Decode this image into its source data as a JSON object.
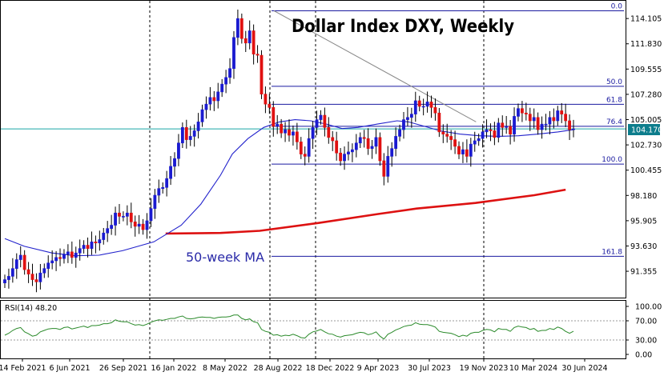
{
  "chart_data": {
    "type": "candlestick",
    "title": "Dollar Index DXY, Weekly",
    "instrument": "DXY",
    "timeframe": "Weekly",
    "current_price": "104.170",
    "price_axis": {
      "ticks": [
        "114.105",
        "111.830",
        "109.555",
        "107.280",
        "105.005",
        "102.730",
        "100.455",
        "98.180",
        "95.905",
        "93.630",
        "91.355"
      ],
      "range": [
        90.4,
        115.0
      ]
    },
    "x_axis_labels": [
      "14 Feb 2021",
      "6 Jun 2021",
      "26 Sep 2021",
      "16 Jan 2022",
      "8 May 2022",
      "28 Aug 2022",
      "18 Dec 2022",
      "9 Apr 2023",
      "30 Jul 2023",
      "19 Nov 2023",
      "10 Mar 2024",
      "30 Jun 2024"
    ],
    "vertical_separators": [
      "16 Jan 2022",
      "28 Aug 2022",
      "18 Dec 2022",
      "19 Nov 2023"
    ],
    "fibonacci_levels": [
      {
        "label": "0.0",
        "price": 114.8
      },
      {
        "label": "50.0",
        "price": 108.0
      },
      {
        "label": "61.8",
        "price": 106.38
      },
      {
        "label": "76.4",
        "price": 104.4
      },
      {
        "label": "100.0",
        "price": 101.0
      },
      {
        "label": "161.8",
        "price": 92.7
      }
    ],
    "annotations": [
      "50-week MA"
    ],
    "series": [
      {
        "kind": "ohlc",
        "color_up": "#1a1ad0",
        "color_down": "#e01010",
        "closes": [
          90.6,
          90.9,
          91.6,
          92.4,
          92.8,
          91.5,
          91.1,
          90.6,
          90.4,
          91.2,
          91.6,
          92.1,
          92.3,
          92.6,
          92.5,
          92.9,
          93.1,
          92.6,
          93.0,
          93.4,
          93.7,
          93.4,
          94.0,
          93.9,
          94.2,
          94.8,
          95.2,
          95.5,
          96.6,
          96.3,
          96.3,
          96.6,
          95.8,
          95.4,
          95.6,
          95.1,
          95.9,
          97.0,
          98.2,
          98.8,
          98.9,
          99.7,
          100.8,
          101.5,
          102.9,
          104.3,
          103.2,
          103.5,
          104.0,
          104.8,
          105.9,
          106.4,
          107.0,
          106.7,
          107.5,
          108.2,
          108.8,
          109.6,
          112.4,
          114.1,
          112.3,
          111.9,
          113.0,
          110.9,
          110.8,
          107.3,
          106.4,
          106.1,
          104.4,
          104.6,
          103.8,
          104.1,
          103.6,
          103.9,
          103.0,
          101.9,
          101.7,
          103.3,
          104.3,
          105.0,
          105.4,
          104.3,
          103.4,
          103.1,
          102.0,
          101.3,
          101.9,
          102.1,
          102.3,
          102.9,
          103.4,
          103.3,
          102.4,
          102.6,
          103.4,
          101.3,
          99.9,
          101.7,
          102.4,
          103.5,
          104.1,
          105.0,
          105.2,
          105.5,
          106.7,
          106.2,
          106.2,
          106.6,
          106.1,
          105.6,
          103.9,
          103.7,
          103.5,
          103.2,
          102.6,
          101.9,
          102.3,
          101.7,
          102.8,
          103.1,
          103.3,
          103.9,
          104.1,
          104.0,
          103.4,
          104.7,
          104.3,
          104.4,
          103.7,
          105.3,
          106.0,
          105.6,
          105.5,
          104.9,
          105.2,
          104.1,
          104.6,
          104.6,
          105.2,
          104.9,
          105.8,
          105.5,
          104.9,
          104.1,
          104.17
        ]
      },
      {
        "kind": "moving_average",
        "period": 50,
        "name": "50-week MA",
        "color": "#dd1111",
        "points": [
          [
            41,
            94.75
          ],
          [
            55,
            94.8
          ],
          [
            65,
            95.0
          ],
          [
            80,
            95.7
          ],
          [
            95,
            96.5
          ],
          [
            105,
            97.0
          ],
          [
            120,
            97.5
          ],
          [
            135,
            98.2
          ],
          [
            143,
            98.7
          ]
        ]
      },
      {
        "kind": "moving_average",
        "color": "#2222cc",
        "points": [
          [
            0,
            94.3
          ],
          [
            5,
            93.6
          ],
          [
            12,
            93.0
          ],
          [
            18,
            92.75
          ],
          [
            24,
            92.8
          ],
          [
            30,
            93.2
          ],
          [
            38,
            94.0
          ],
          [
            45,
            95.5
          ],
          [
            50,
            97.4
          ],
          [
            55,
            100.0
          ],
          [
            58,
            101.9
          ],
          [
            62,
            103.3
          ],
          [
            66,
            104.3
          ],
          [
            70,
            104.8
          ],
          [
            74,
            105.0
          ],
          [
            78,
            104.9
          ],
          [
            82,
            104.6
          ],
          [
            86,
            104.2
          ],
          [
            90,
            104.3
          ],
          [
            95,
            104.6
          ],
          [
            100,
            104.9
          ],
          [
            103,
            104.8
          ],
          [
            107,
            104.4
          ],
          [
            111,
            104.0
          ],
          [
            116,
            103.7
          ],
          [
            121,
            103.55
          ],
          [
            126,
            103.5
          ],
          [
            131,
            103.55
          ],
          [
            136,
            103.7
          ],
          [
            141,
            103.9
          ],
          [
            145,
            104.1
          ]
        ]
      }
    ],
    "trendline": {
      "from": [
        59,
        114.8
      ],
      "to": [
        111,
        104.8
      ]
    },
    "rsi": {
      "label": "RSI(14) 48.20",
      "ticks": [
        "100.00",
        "70.00",
        "30.00",
        "0.00"
      ],
      "levels": [
        30,
        70
      ],
      "values": [
        40,
        44,
        50,
        54,
        56,
        47,
        43,
        38,
        40,
        47,
        50,
        53,
        54,
        54,
        52,
        56,
        57,
        53,
        55,
        57,
        59,
        56,
        60,
        60,
        61,
        64,
        64,
        66,
        72,
        69,
        68,
        68,
        64,
        61,
        62,
        60,
        63,
        67,
        70,
        72,
        71,
        73,
        75,
        75,
        78,
        80,
        75,
        74,
        75,
        77,
        78,
        77,
        77,
        75,
        77,
        78,
        78,
        79,
        82,
        82,
        75,
        72,
        74,
        68,
        66,
        52,
        48,
        46,
        40,
        41,
        38,
        40,
        39,
        42,
        39,
        35,
        34,
        42,
        47,
        49,
        52,
        47,
        43,
        42,
        38,
        36,
        39,
        40,
        41,
        44,
        46,
        45,
        41,
        43,
        47,
        38,
        32,
        42,
        46,
        51,
        54,
        58,
        60,
        61,
        66,
        63,
        62,
        62,
        60,
        57,
        48,
        46,
        45,
        44,
        41,
        37,
        40,
        38,
        44,
        46,
        46,
        50,
        52,
        51,
        47,
        54,
        52,
        52,
        48,
        56,
        59,
        57,
        56,
        52,
        54,
        48,
        50,
        50,
        54,
        52,
        57,
        54,
        48,
        44,
        48.2
      ]
    }
  }
}
